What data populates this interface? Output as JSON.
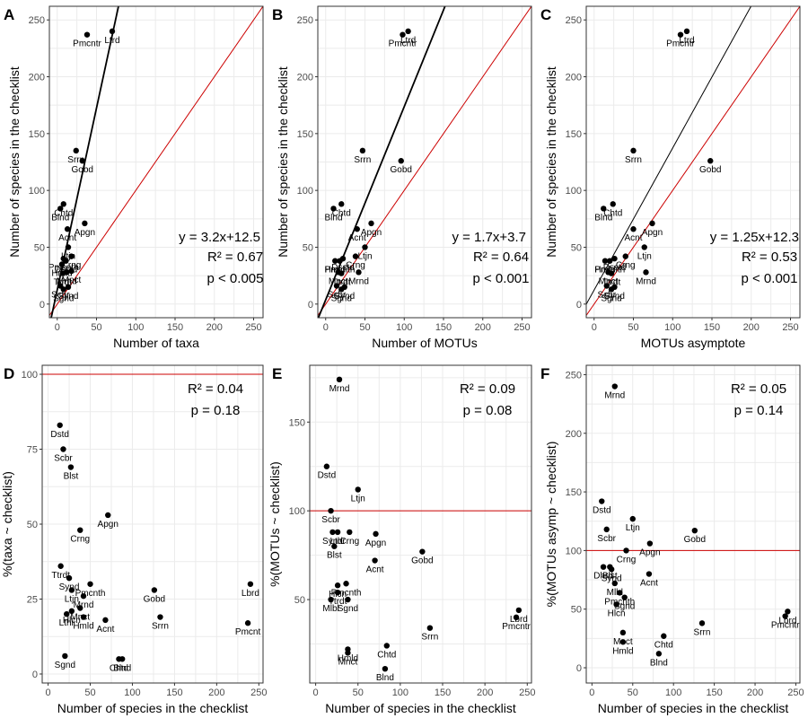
{
  "chart_data": [
    {
      "id": "A",
      "type": "scatter",
      "tag": "A",
      "xlabel": "Number of taxa",
      "ylabel": "Number of species in the checklist",
      "xlim": [
        -10,
        262
      ],
      "ylim": [
        -12,
        262
      ],
      "xticks": [
        0,
        50,
        100,
        150,
        200,
        250
      ],
      "yticks": [
        0,
        50,
        100,
        150,
        200,
        250
      ],
      "points": [
        {
          "label": "Ltrd",
          "x": 70,
          "y": 240
        },
        {
          "label": "Pmcntr",
          "x": 38,
          "y": 237
        },
        {
          "label": "Srrn",
          "x": 24,
          "y": 135
        },
        {
          "label": "Gobd",
          "x": 32,
          "y": 126
        },
        {
          "label": "Chtd",
          "x": 8,
          "y": 88
        },
        {
          "label": "Blnd",
          "x": 4,
          "y": 84
        },
        {
          "label": "Acnt",
          "x": 13,
          "y": 66
        },
        {
          "label": "Apgn",
          "x": 35,
          "y": 71
        },
        {
          "label": "Ltjn",
          "x": 14,
          "y": 50
        },
        {
          "label": "Crng",
          "x": 18,
          "y": 42
        },
        {
          "label": "Dsstd",
          "x": 11,
          "y": 38
        },
        {
          "label": "Hmld",
          "x": 6,
          "y": 35
        },
        {
          "label": "Pmcnth",
          "x": 8,
          "y": 40
        },
        {
          "label": "Mrnd",
          "x": 12,
          "y": 28
        },
        {
          "label": "Mnct",
          "x": 18,
          "y": 29
        },
        {
          "label": "Ttrdt",
          "x": 7,
          "y": 27
        },
        {
          "label": "Scbr",
          "x": 4,
          "y": 16
        },
        {
          "label": "Sgnd",
          "x": 8,
          "y": 13
        },
        {
          "label": "Synd",
          "x": 14,
          "y": 15
        }
      ],
      "fit": {
        "slope": 3.2,
        "intercept": 12.5
      },
      "identity": true,
      "stats": [
        "y = 3.2x+12.5",
        "R² = 0.67",
        "p < 0.005"
      ]
    },
    {
      "id": "B",
      "type": "scatter",
      "tag": "B",
      "xlabel": "Number of MOTUs",
      "ylabel": "Number of species in the checklist",
      "xlim": [
        -10,
        262
      ],
      "ylim": [
        -12,
        262
      ],
      "xticks": [
        0,
        50,
        100,
        150,
        200,
        250
      ],
      "yticks": [
        0,
        50,
        100,
        150,
        200,
        250
      ],
      "points": [
        {
          "label": "Ltrd",
          "x": 105,
          "y": 240
        },
        {
          "label": "Pmcntr",
          "x": 98,
          "y": 237
        },
        {
          "label": "Srrn",
          "x": 47,
          "y": 135
        },
        {
          "label": "Gobd",
          "x": 96,
          "y": 126
        },
        {
          "label": "Chtd",
          "x": 20,
          "y": 88
        },
        {
          "label": "Blnd",
          "x": 10,
          "y": 84
        },
        {
          "label": "Acnt",
          "x": 40,
          "y": 66
        },
        {
          "label": "Apgn",
          "x": 58,
          "y": 71
        },
        {
          "label": "Ltjn",
          "x": 50,
          "y": 50
        },
        {
          "label": "Crng",
          "x": 38,
          "y": 42
        },
        {
          "label": "Dsstd",
          "x": 22,
          "y": 40
        },
        {
          "label": "Hmld",
          "x": 12,
          "y": 38
        },
        {
          "label": "Pmcnth",
          "x": 18,
          "y": 38
        },
        {
          "label": "Mrnd",
          "x": 42,
          "y": 28
        },
        {
          "label": "Mnct",
          "x": 16,
          "y": 28
        },
        {
          "label": "Ttrdt",
          "x": 20,
          "y": 27
        },
        {
          "label": "Scbr",
          "x": 14,
          "y": 16
        },
        {
          "label": "Sgnd",
          "x": 20,
          "y": 13
        },
        {
          "label": "Synd",
          "x": 24,
          "y": 15
        }
      ],
      "fit": {
        "slope": 1.7,
        "intercept": 3.7
      },
      "identity": true,
      "stats": [
        "y = 1.7x+3.7",
        "R² = 0.64",
        "p < 0.001"
      ]
    },
    {
      "id": "C",
      "type": "scatter",
      "tag": "C",
      "xlabel": "MOTUs asymptote",
      "ylabel": "Number of species in the checklist",
      "xlim": [
        -10,
        262
      ],
      "ylim": [
        -12,
        262
      ],
      "xticks": [
        0,
        50,
        100,
        150,
        200,
        250
      ],
      "yticks": [
        0,
        50,
        100,
        150,
        200,
        250
      ],
      "points": [
        {
          "label": "Ltrd",
          "x": 118,
          "y": 240
        },
        {
          "label": "Pmcntr",
          "x": 110,
          "y": 237
        },
        {
          "label": "Srrn",
          "x": 50,
          "y": 135
        },
        {
          "label": "Gobd",
          "x": 148,
          "y": 126
        },
        {
          "label": "Chtd",
          "x": 24,
          "y": 88
        },
        {
          "label": "Blnd",
          "x": 12,
          "y": 84
        },
        {
          "label": "Acnt",
          "x": 50,
          "y": 66
        },
        {
          "label": "Apgn",
          "x": 74,
          "y": 71
        },
        {
          "label": "Ltjn",
          "x": 64,
          "y": 50
        },
        {
          "label": "Crng",
          "x": 40,
          "y": 42
        },
        {
          "label": "Dsstd",
          "x": 26,
          "y": 40
        },
        {
          "label": "Hmld",
          "x": 14,
          "y": 38
        },
        {
          "label": "Pmcnth",
          "x": 20,
          "y": 38
        },
        {
          "label": "Mrnd",
          "x": 66,
          "y": 28
        },
        {
          "label": "Mnct",
          "x": 18,
          "y": 28
        },
        {
          "label": "Ttrdt",
          "x": 22,
          "y": 27
        },
        {
          "label": "Scbr",
          "x": 16,
          "y": 16
        },
        {
          "label": "Sgnd",
          "x": 22,
          "y": 13
        },
        {
          "label": "Synd",
          "x": 26,
          "y": 15
        }
      ],
      "fit": {
        "slope": 1.25,
        "intercept": 12.3
      },
      "identity": true,
      "stats": [
        "y = 1.25x+12.3",
        "R² = 0.53",
        "p < 0.001"
      ]
    },
    {
      "id": "D",
      "type": "scatter",
      "tag": "D",
      "xlabel": "Number of species in the checklist",
      "ylabel": "%(taxa ~ checklist)",
      "xlim": [
        -7,
        255
      ],
      "ylim": [
        -3,
        103
      ],
      "xticks": [
        0,
        50,
        100,
        150,
        200,
        250
      ],
      "yticks": [
        0,
        25,
        50,
        75,
        100
      ],
      "points": [
        {
          "label": "Dstd",
          "x": 14,
          "y": 83
        },
        {
          "label": "Scbr",
          "x": 18,
          "y": 75
        },
        {
          "label": "Blst",
          "x": 27,
          "y": 69
        },
        {
          "label": "Crng",
          "x": 38,
          "y": 48
        },
        {
          "label": "Apgn",
          "x": 71,
          "y": 53
        },
        {
          "label": "Ttrdt",
          "x": 15,
          "y": 36
        },
        {
          "label": "Synd",
          "x": 25,
          "y": 32
        },
        {
          "label": "Ltjn",
          "x": 28,
          "y": 28
        },
        {
          "label": "Pmcnth",
          "x": 50,
          "y": 30
        },
        {
          "label": "Mrnd",
          "x": 42,
          "y": 26
        },
        {
          "label": "Mnct",
          "x": 38,
          "y": 22
        },
        {
          "label": "Hlcn",
          "x": 28,
          "y": 21
        },
        {
          "label": "Lthr",
          "x": 22,
          "y": 20
        },
        {
          "label": "Hmld",
          "x": 42,
          "y": 19
        },
        {
          "label": "Sgnd",
          "x": 20,
          "y": 6
        },
        {
          "label": "Acnt",
          "x": 68,
          "y": 18
        },
        {
          "label": "Chtd",
          "x": 84,
          "y": 5
        },
        {
          "label": "Blnd",
          "x": 88,
          "y": 5
        },
        {
          "label": "Gobd",
          "x": 126,
          "y": 28
        },
        {
          "label": "Srrn",
          "x": 133,
          "y": 19
        },
        {
          "label": "Lbrd",
          "x": 240,
          "y": 30
        },
        {
          "label": "Pmcnt",
          "x": 237,
          "y": 17
        }
      ],
      "hline": 100,
      "stats": [
        "R² = 0.04",
        "p = 0.18"
      ]
    },
    {
      "id": "E",
      "type": "scatter",
      "tag": "E",
      "xlabel": "Number of species in the checklist",
      "ylabel": "%(MOTUs ~ checklist)",
      "xlim": [
        -7,
        255
      ],
      "ylim": [
        3,
        182
      ],
      "xticks": [
        0,
        50,
        100,
        150,
        200,
        250
      ],
      "yticks": [
        50,
        100,
        150
      ],
      "points": [
        {
          "label": "Mrnd",
          "x": 28,
          "y": 174
        },
        {
          "label": "Dstd",
          "x": 13,
          "y": 125
        },
        {
          "label": "Ltjn",
          "x": 50,
          "y": 112
        },
        {
          "label": "Scbr",
          "x": 18,
          "y": 100
        },
        {
          "label": "Crng",
          "x": 40,
          "y": 88
        },
        {
          "label": "Lthr",
          "x": 26,
          "y": 88
        },
        {
          "label": "Synd",
          "x": 20,
          "y": 88
        },
        {
          "label": "Blst",
          "x": 22,
          "y": 80
        },
        {
          "label": "Apgn",
          "x": 71,
          "y": 87
        },
        {
          "label": "Acnt",
          "x": 70,
          "y": 72
        },
        {
          "label": "Gobd",
          "x": 126,
          "y": 77
        },
        {
          "label": "Hlcn",
          "x": 26,
          "y": 58
        },
        {
          "label": "Ttrdt",
          "x": 26,
          "y": 54
        },
        {
          "label": "Pmcnth",
          "x": 36,
          "y": 59
        },
        {
          "label": "Mlbl",
          "x": 18,
          "y": 50
        },
        {
          "label": "Sgnd",
          "x": 38,
          "y": 50
        },
        {
          "label": "Hmld",
          "x": 38,
          "y": 22
        },
        {
          "label": "Mnct",
          "x": 38,
          "y": 20
        },
        {
          "label": "Chtd",
          "x": 84,
          "y": 24
        },
        {
          "label": "Blnd",
          "x": 82,
          "y": 11
        },
        {
          "label": "Srrn",
          "x": 135,
          "y": 34
        },
        {
          "label": "Pmcntr",
          "x": 237,
          "y": 40
        },
        {
          "label": "Lbrd",
          "x": 240,
          "y": 44
        }
      ],
      "hline": 100,
      "stats": [
        "R² = 0.09",
        "p = 0.08"
      ]
    },
    {
      "id": "F",
      "type": "scatter",
      "tag": "F",
      "xlabel": "Number of species in the checklist",
      "ylabel": "%(MOTUs asymp ~ checklist)",
      "xlim": [
        -7,
        255
      ],
      "ylim": [
        -13,
        258
      ],
      "xticks": [
        0,
        50,
        100,
        150,
        200,
        250
      ],
      "yticks": [
        0,
        50,
        100,
        150,
        200,
        250
      ],
      "points": [
        {
          "label": "Mrnd",
          "x": 28,
          "y": 240
        },
        {
          "label": "Dstd",
          "x": 12,
          "y": 142
        },
        {
          "label": "Scbr",
          "x": 18,
          "y": 118
        },
        {
          "label": "Ltjn",
          "x": 50,
          "y": 127
        },
        {
          "label": "Crng",
          "x": 42,
          "y": 100
        },
        {
          "label": "Apgn",
          "x": 71,
          "y": 106
        },
        {
          "label": "Gobd",
          "x": 126,
          "y": 117
        },
        {
          "label": "Dhrd",
          "x": 14,
          "y": 86
        },
        {
          "label": "Synd",
          "x": 24,
          "y": 84
        },
        {
          "label": "Blst",
          "x": 22,
          "y": 86
        },
        {
          "label": "Acnt",
          "x": 70,
          "y": 80
        },
        {
          "label": "Mlld",
          "x": 28,
          "y": 72
        },
        {
          "label": "Pmcnth",
          "x": 34,
          "y": 64
        },
        {
          "label": "Sgnd",
          "x": 40,
          "y": 60
        },
        {
          "label": "Hlcn",
          "x": 30,
          "y": 54
        },
        {
          "label": "Mnct",
          "x": 38,
          "y": 30
        },
        {
          "label": "Hmld",
          "x": 38,
          "y": 22
        },
        {
          "label": "Chtd",
          "x": 88,
          "y": 27
        },
        {
          "label": "Blnd",
          "x": 82,
          "y": 12
        },
        {
          "label": "Srrn",
          "x": 135,
          "y": 38
        },
        {
          "label": "Lbrd",
          "x": 240,
          "y": 48
        },
        {
          "label": "Pmcntr",
          "x": 237,
          "y": 44
        }
      ],
      "hline": 100,
      "stats": [
        "R² = 0.05",
        "p = 0.14"
      ]
    }
  ],
  "colors": {
    "point": "#000000",
    "fit": "#000000",
    "reference": "#cc0000",
    "grid": "#ebebeb",
    "border": "#333333"
  }
}
